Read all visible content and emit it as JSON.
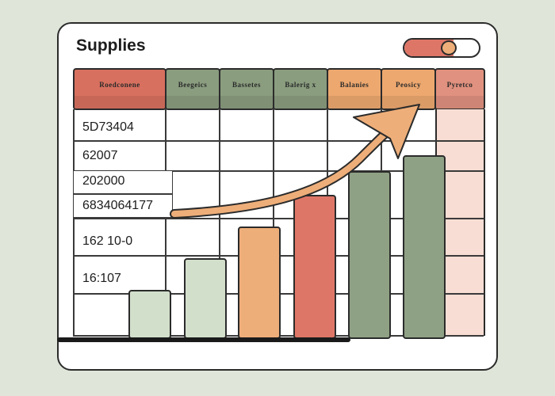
{
  "window": {
    "title": "Supplies"
  },
  "toggle": {
    "state": "on",
    "colors": {
      "track": "#de7667",
      "knob": "#eeae79"
    }
  },
  "columns": [
    {
      "label": "Roedconene",
      "color": "#d8705f"
    },
    {
      "label": "Beegeics",
      "color": "#8a9d7f"
    },
    {
      "label": "Bassetes",
      "color": "#8a9d7f"
    },
    {
      "label": "Balerig x",
      "color": "#8a9d7f"
    },
    {
      "label": "Balanies",
      "color": "#eda86f"
    },
    {
      "label": "Peosicy",
      "color": "#eda86f"
    },
    {
      "label": "Pyretco",
      "color": "#e1917f"
    }
  ],
  "rows": [
    {
      "value": "5D73404"
    },
    {
      "value": "62007"
    },
    {
      "value": "202000"
    },
    {
      "value": "6834064177"
    },
    {
      "value": "162 10-0"
    },
    {
      "value": "16:107"
    }
  ],
  "chart_data": {
    "type": "bar",
    "categories": [
      "",
      "",
      "",
      "",
      "",
      ""
    ],
    "values": [
      62,
      102,
      142,
      182,
      212,
      232
    ],
    "colors": [
      "#d2dfcb",
      "#d2dfcb",
      "#eeae79",
      "#de7667",
      "#8fa185",
      "#8fa185"
    ],
    "trend_arrow": {
      "color": "#eeae79",
      "direction": "up-right"
    }
  }
}
